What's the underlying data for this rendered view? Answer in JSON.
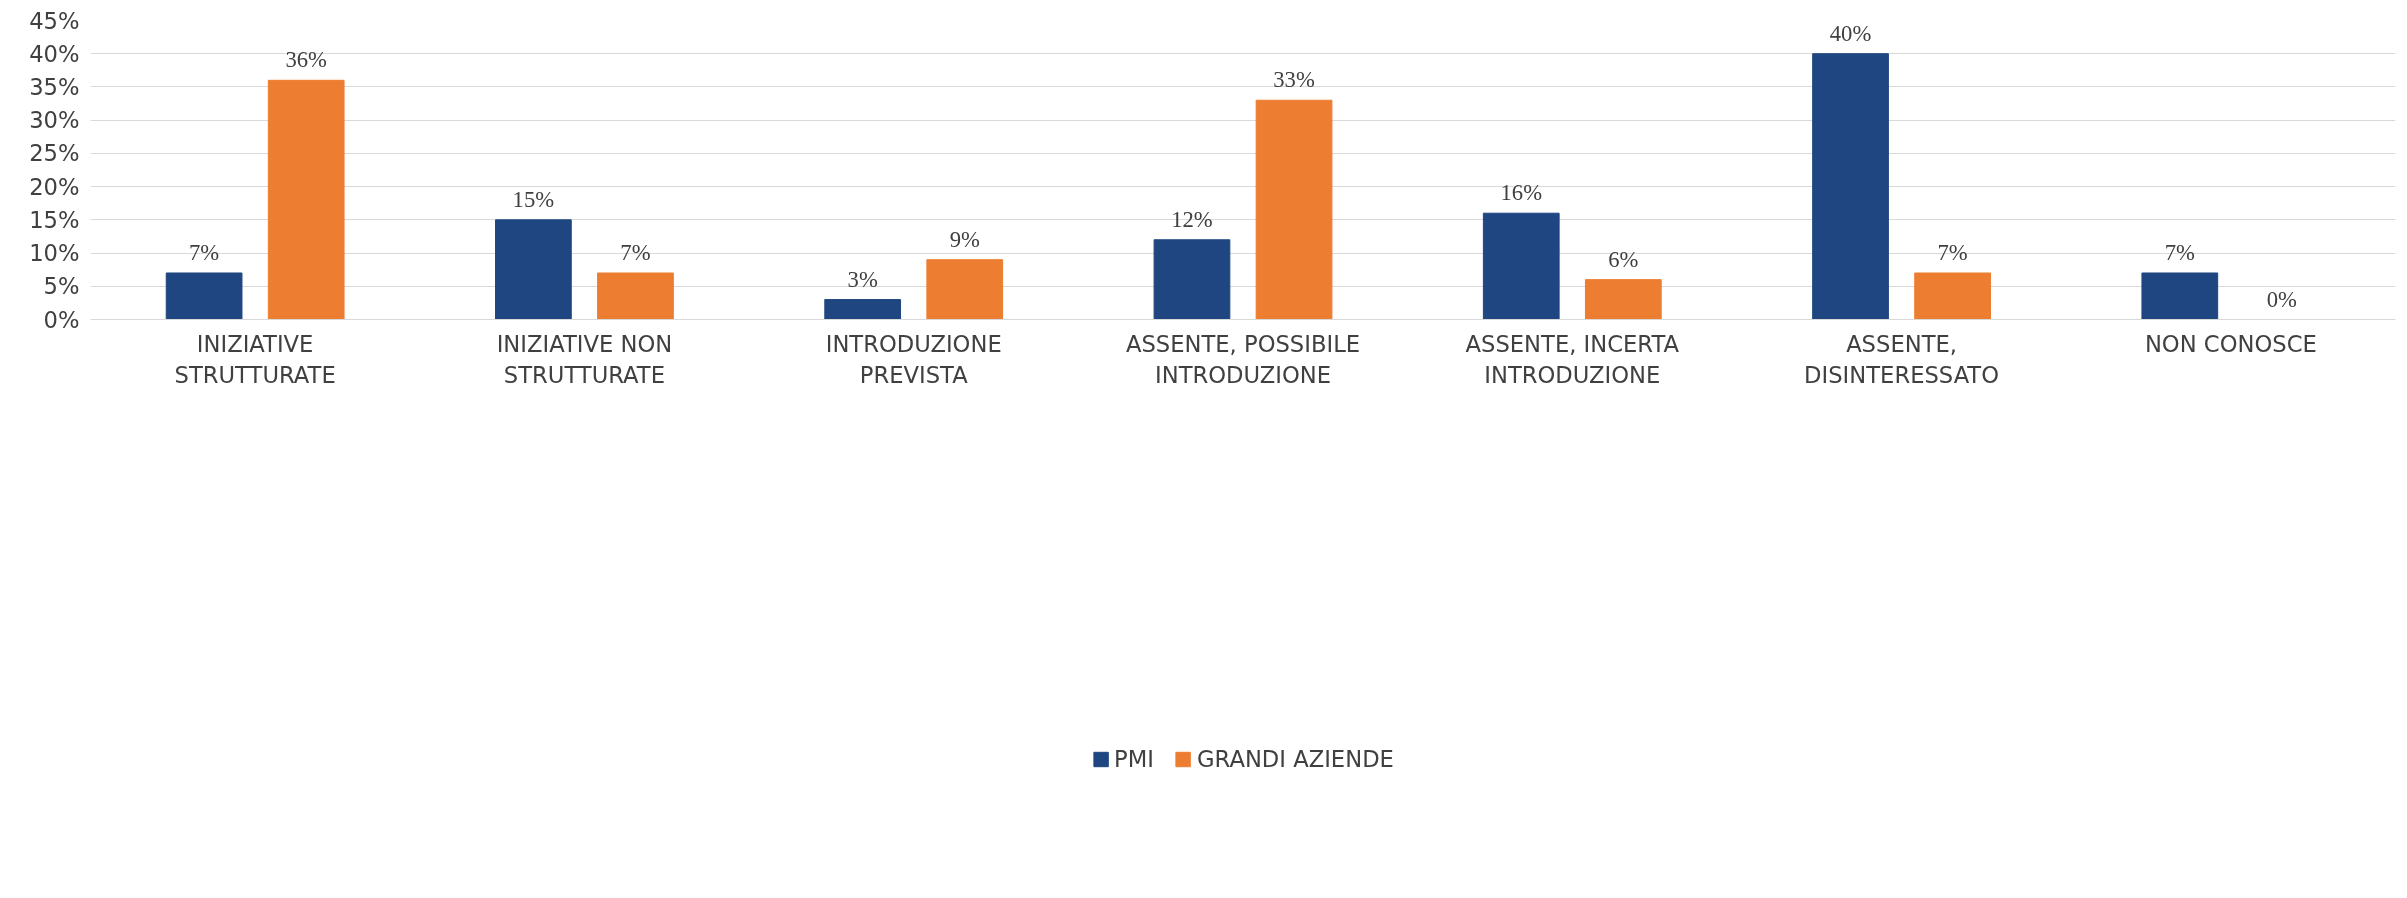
{
  "chart_data": {
    "type": "bar",
    "categories": [
      "INIZIATIVE STRUTTURATE",
      "INIZIATIVE NON STRUTTURATE",
      "INTRODUZIONE PREVISTA",
      "ASSENTE, POSSIBILE INTRODUZIONE",
      "ASSENTE, INCERTA INTRODUZIONE",
      "ASSENTE, DISINTERESSATO",
      "NON CONOSCE"
    ],
    "series": [
      {
        "name": "PMI",
        "color": "#1f4680",
        "values": [
          7,
          15,
          3,
          12,
          16,
          40,
          7
        ],
        "value_labels": [
          "7%",
          "15%",
          "3%",
          "12%",
          "16%",
          "40%",
          "7%"
        ]
      },
      {
        "name": "GRANDI AZIENDE",
        "color": "#ed7d31",
        "values": [
          36,
          7,
          9,
          33,
          6,
          7,
          0
        ],
        "value_labels": [
          "36%",
          "7%",
          "9%",
          "33%",
          "6%",
          "7%",
          "0%"
        ]
      }
    ],
    "ylim": [
      0,
      45
    ],
    "yticks": [
      {
        "value": 0,
        "label": "0%"
      },
      {
        "value": 5,
        "label": "5%"
      },
      {
        "value": 10,
        "label": "10%"
      },
      {
        "value": 15,
        "label": "15%"
      },
      {
        "value": 20,
        "label": "20%"
      },
      {
        "value": 25,
        "label": "25%"
      },
      {
        "value": 30,
        "label": "30%"
      },
      {
        "value": 35,
        "label": "35%"
      },
      {
        "value": 40,
        "label": "40%"
      },
      {
        "value": 45,
        "label": "45%"
      }
    ],
    "grid": "y",
    "legend": "bottom"
  }
}
